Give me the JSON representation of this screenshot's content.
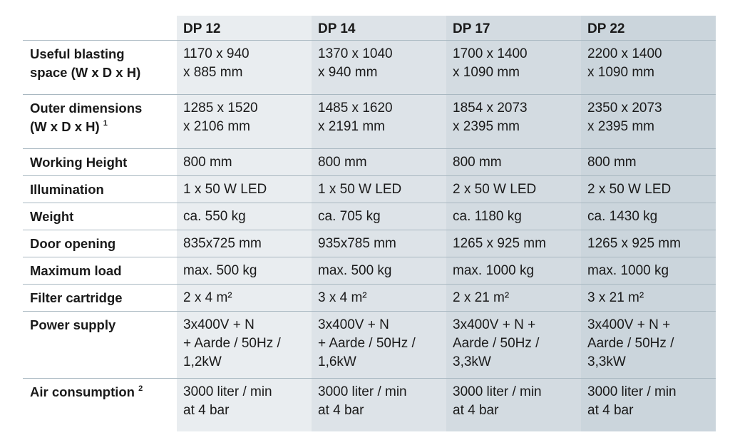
{
  "columns": [
    "DP 12",
    "DP 14",
    "DP 17",
    "DP 22"
  ],
  "rows": [
    {
      "label": "Useful blasting\nspace (W x D x H)",
      "values": [
        "1170 x 940\nx 885 mm",
        "1370 x 1040\nx 940 mm",
        "1700 x 1400\nx 1090 mm",
        "2200 x 1400\nx 1090 mm"
      ]
    },
    {
      "label": "Outer dimensions\n(W x D x H)",
      "footnote": "1",
      "values": [
        "1285 x 1520\nx 2106 mm",
        "1485 x 1620\nx 2191 mm",
        "1854 x 2073\nx 2395 mm",
        "2350 x 2073\nx 2395 mm"
      ]
    },
    {
      "label": "Working Height",
      "values": [
        "800 mm",
        "800 mm",
        "800 mm",
        "800 mm"
      ]
    },
    {
      "label": "Illumination",
      "values": [
        "1 x 50 W LED",
        "1 x 50 W LED",
        "2 x 50 W LED",
        "2 x 50 W LED"
      ]
    },
    {
      "label": "Weight",
      "values": [
        "ca. 550 kg",
        "ca. 705 kg",
        "ca. 1180 kg",
        "ca. 1430 kg"
      ]
    },
    {
      "label": "Door opening",
      "values": [
        "835x725 mm",
        "935x785 mm",
        "1265 x 925 mm",
        "1265 x 925 mm"
      ]
    },
    {
      "label": "Maximum load",
      "values": [
        "max. 500 kg",
        "max. 500 kg",
        "max. 1000 kg",
        "max. 1000 kg"
      ]
    },
    {
      "label": "Filter cartridge",
      "values": [
        "2 x 4 m²",
        "3 x 4 m²",
        "2 x 21 m²",
        "3 x 21 m²"
      ]
    },
    {
      "label": "Power supply",
      "values": [
        "3x400V + N\n+ Aarde / 50Hz /\n1,2kW",
        "3x400V + N\n+ Aarde / 50Hz /\n1,6kW",
        "3x400V + N +\nAarde / 50Hz /\n3,3kW",
        "3x400V + N +\nAarde / 50Hz /\n3,3kW"
      ]
    },
    {
      "label": "Air consumption",
      "footnote": "2",
      "values": [
        "3000 liter / min\nat 4 bar",
        "3000 liter / min\nat 4 bar",
        "3000 liter / min\nat 4 bar",
        "3000 liter / min\nat 4 bar"
      ]
    }
  ]
}
